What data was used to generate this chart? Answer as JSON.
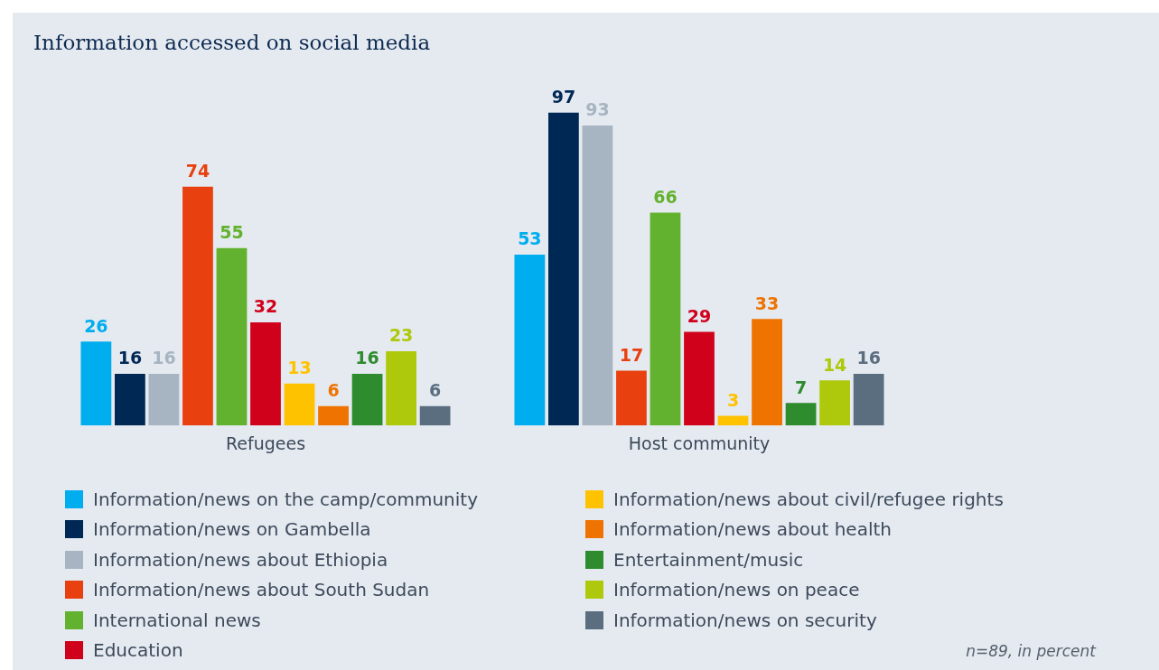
{
  "chart_data": {
    "type": "bar",
    "title": "Information accessed on social media",
    "categories": [
      "Refugees",
      "Host community"
    ],
    "series": [
      {
        "name": "Information/news on the camp/community",
        "color": "#00adef",
        "values": [
          26,
          53
        ]
      },
      {
        "name": "Information/news on Gambella",
        "color": "#002855",
        "values": [
          16,
          97
        ]
      },
      {
        "name": "Information/news about Ethiopia",
        "color": "#a7b4c2",
        "values": [
          16,
          93
        ]
      },
      {
        "name": "Information/news about South Sudan",
        "color": "#e8410f",
        "values": [
          74,
          17
        ]
      },
      {
        "name": "International news",
        "color": "#63b22f",
        "values": [
          55,
          66
        ]
      },
      {
        "name": "Education",
        "color": "#d0021b",
        "values": [
          32,
          29
        ]
      },
      {
        "name": "Information/news about civil/refugee rights",
        "color": "#ffc200",
        "values": [
          13,
          3
        ]
      },
      {
        "name": "Information/news about health",
        "color": "#ef7300",
        "values": [
          6,
          33
        ]
      },
      {
        "name": "Entertainment/music",
        "color": "#2e8b2e",
        "values": [
          16,
          7
        ]
      },
      {
        "name": "Information/news on peace",
        "color": "#aec90b",
        "values": [
          23,
          14
        ]
      },
      {
        "name": "Information/news on security",
        "color": "#5b6e80",
        "values": [
          6,
          16
        ]
      }
    ],
    "data_labels": true,
    "grid": false,
    "legend": "bottom",
    "annotations": [
      "n=89, in percent"
    ]
  }
}
